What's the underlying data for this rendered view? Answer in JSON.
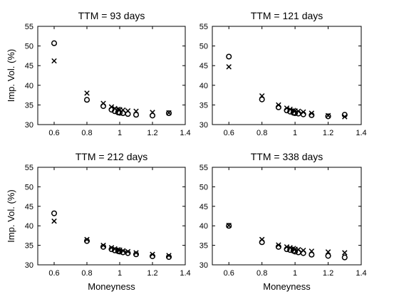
{
  "chart_data": [
    {
      "type": "scatter",
      "title": "TTM = 93 days",
      "xlabel": "",
      "ylabel": "Imp. Vol. (%)",
      "xlim": [
        0.5,
        1.4
      ],
      "ylim": [
        30,
        55
      ],
      "xticks": [
        "0.6",
        "0.8",
        "1",
        "1.2",
        "1.4"
      ],
      "yticks": [
        "30",
        "35",
        "40",
        "45",
        "50",
        "55"
      ],
      "grid": false,
      "series": [
        {
          "marker": "x",
          "x": [
            0.6,
            0.8,
            0.9,
            0.95,
            0.97,
            0.99,
            1.0,
            1.02,
            1.05,
            1.1,
            1.2,
            1.3
          ],
          "y": [
            46.2,
            38.0,
            35.4,
            34.5,
            34.1,
            33.9,
            33.8,
            33.7,
            33.5,
            33.4,
            33.1,
            33.0
          ]
        },
        {
          "marker": "o",
          "x": [
            0.6,
            0.8,
            0.9,
            0.95,
            0.97,
            0.99,
            1.0,
            1.02,
            1.05,
            1.1,
            1.2,
            1.3
          ],
          "y": [
            50.7,
            36.3,
            34.7,
            33.8,
            33.4,
            33.1,
            33.0,
            32.9,
            32.7,
            32.5,
            32.3,
            32.9
          ]
        }
      ]
    },
    {
      "type": "scatter",
      "title": "TTM = 121 days",
      "xlabel": "",
      "ylabel": "",
      "xlim": [
        0.5,
        1.4
      ],
      "ylim": [
        30,
        55
      ],
      "xticks": [
        "0.6",
        "0.8",
        "1",
        "1.2",
        "1.4"
      ],
      "yticks": [
        "30",
        "35",
        "40",
        "45",
        "50",
        "55"
      ],
      "grid": false,
      "series": [
        {
          "marker": "x",
          "x": [
            0.6,
            0.8,
            0.9,
            0.95,
            0.97,
            0.99,
            1.0,
            1.02,
            1.05,
            1.1,
            1.2,
            1.3
          ],
          "y": [
            44.7,
            37.3,
            35.0,
            34.2,
            33.9,
            33.6,
            33.5,
            33.4,
            33.2,
            32.9,
            32.3,
            32.0
          ]
        },
        {
          "marker": "o",
          "x": [
            0.6,
            0.8,
            0.9,
            0.95,
            0.97,
            0.99,
            1.0,
            1.02,
            1.05,
            1.1,
            1.2,
            1.3
          ],
          "y": [
            47.3,
            36.4,
            34.4,
            33.6,
            33.3,
            33.0,
            32.9,
            32.8,
            32.6,
            32.4,
            32.1,
            32.5
          ]
        }
      ]
    },
    {
      "type": "scatter",
      "title": "TTM = 212 days",
      "xlabel": "Moneyness",
      "ylabel": "Imp. Vol. (%)",
      "xlim": [
        0.5,
        1.4
      ],
      "ylim": [
        30,
        55
      ],
      "xticks": [
        "0.6",
        "0.8",
        "1",
        "1.2",
        "1.4"
      ],
      "yticks": [
        "30",
        "35",
        "40",
        "45",
        "50",
        "55"
      ],
      "grid": false,
      "series": [
        {
          "marker": "x",
          "x": [
            0.6,
            0.8,
            0.9,
            0.95,
            0.97,
            0.99,
            1.0,
            1.02,
            1.05,
            1.1,
            1.2,
            1.3
          ],
          "y": [
            41.2,
            36.5,
            35.0,
            34.4,
            34.1,
            33.9,
            33.8,
            33.6,
            33.4,
            33.1,
            32.7,
            32.4
          ]
        },
        {
          "marker": "o",
          "x": [
            0.6,
            0.8,
            0.9,
            0.95,
            0.97,
            0.99,
            1.0,
            1.02,
            1.05,
            1.1,
            1.2,
            1.3
          ],
          "y": [
            43.2,
            36.1,
            34.6,
            34.0,
            33.7,
            33.5,
            33.4,
            33.2,
            33.0,
            32.7,
            32.2,
            32.0
          ]
        }
      ]
    },
    {
      "type": "scatter",
      "title": "TTM = 338 days",
      "xlabel": "Moneyness",
      "ylabel": "",
      "xlim": [
        0.5,
        1.4
      ],
      "ylim": [
        30,
        55
      ],
      "xticks": [
        "0.6",
        "0.8",
        "1",
        "1.2",
        "1.4"
      ],
      "yticks": [
        "30",
        "35",
        "40",
        "45",
        "50",
        "55"
      ],
      "grid": false,
      "series": [
        {
          "marker": "x",
          "x": [
            0.6,
            0.8,
            0.9,
            0.95,
            0.97,
            0.99,
            1.0,
            1.02,
            1.05,
            1.1,
            1.2,
            1.3
          ],
          "y": [
            40.1,
            36.5,
            35.1,
            34.6,
            34.4,
            34.2,
            34.0,
            33.9,
            33.7,
            33.5,
            33.3,
            33.1
          ]
        },
        {
          "marker": "o",
          "x": [
            0.6,
            0.8,
            0.9,
            0.95,
            0.97,
            0.99,
            1.0,
            1.02,
            1.05,
            1.1,
            1.2,
            1.3
          ],
          "y": [
            40.0,
            35.8,
            34.6,
            34.0,
            33.8,
            33.6,
            33.4,
            33.2,
            33.0,
            32.6,
            32.3,
            31.9
          ]
        }
      ]
    }
  ]
}
